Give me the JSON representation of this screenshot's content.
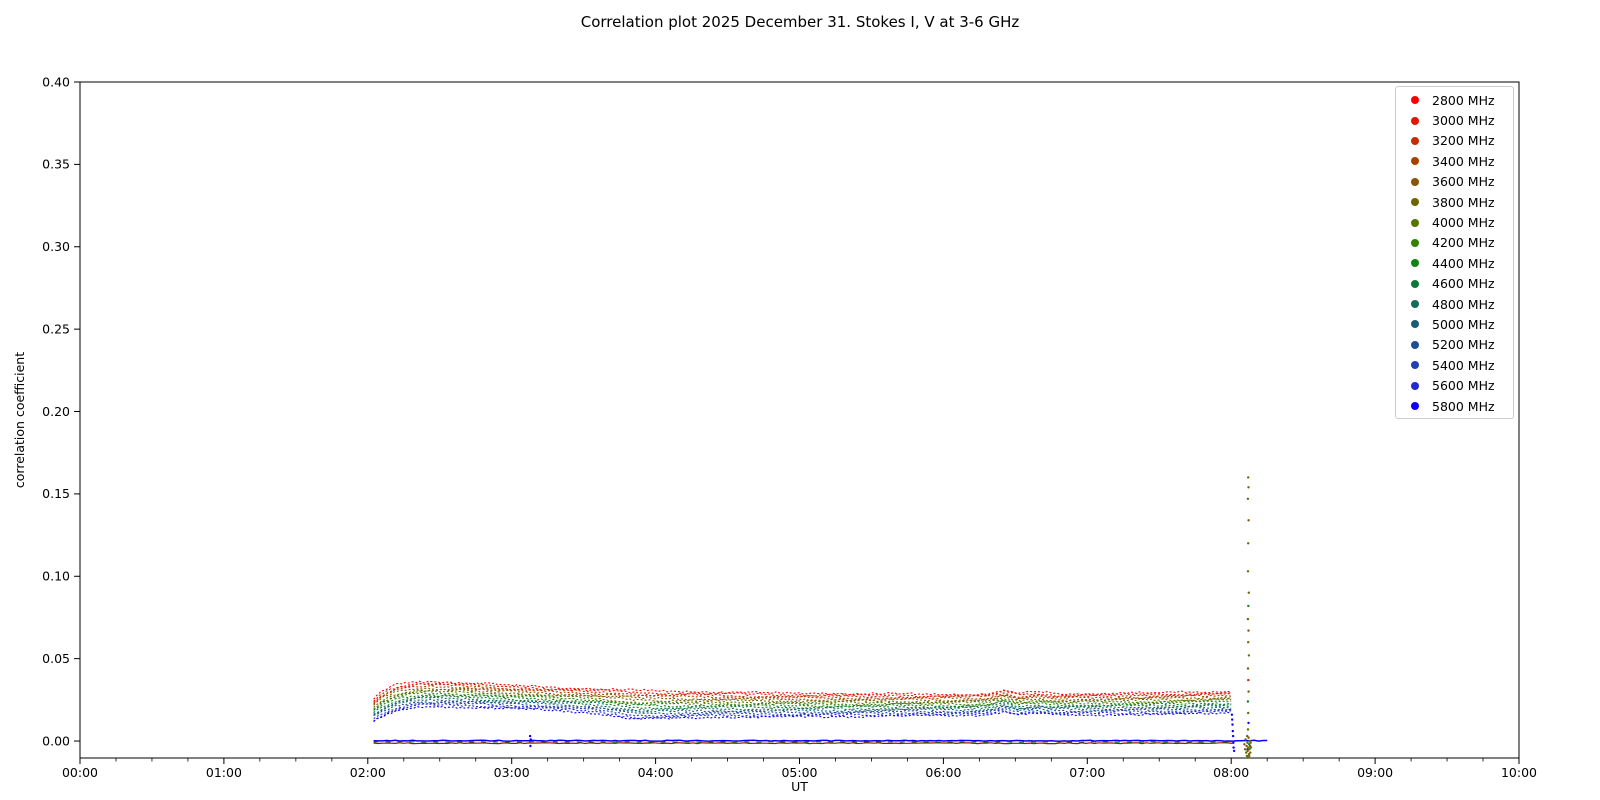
{
  "figure": {
    "title": "Correlation plot 2025 December 31. Stokes I, V at 3-6 GHz"
  },
  "chart_data": {
    "type": "line",
    "title": "Correlation plot 2025 December 31. Stokes I, V at 3-6 GHz",
    "xlabel": "UT",
    "ylabel": "correlation coefficient",
    "xlim_hours": [
      0,
      10
    ],
    "ylim": [
      -0.0103,
      0.4
    ],
    "x_major_tick_labels": [
      "00:00",
      "01:00",
      "02:00",
      "03:00",
      "04:00",
      "05:00",
      "06:00",
      "07:00",
      "08:00",
      "09:00",
      "10:00"
    ],
    "x_minor_tick_interval_minutes": 15,
    "y_ticks": [
      "0.00",
      "0.05",
      "0.10",
      "0.15",
      "0.20",
      "0.25",
      "0.30",
      "0.35",
      "0.40"
    ],
    "grid": false,
    "legend": {
      "position": "upper right",
      "entries": [
        {
          "label": "2800 MHz",
          "color": "#ff0000"
        },
        {
          "label": "3000 MHz",
          "color": "#e21600"
        },
        {
          "label": "3200 MHz",
          "color": "#c52c00"
        },
        {
          "label": "3400 MHz",
          "color": "#a84100"
        },
        {
          "label": "3600 MHz",
          "color": "#8b5400"
        },
        {
          "label": "3800 MHz",
          "color": "#6f6500"
        },
        {
          "label": "4000 MHz",
          "color": "#537600"
        },
        {
          "label": "4200 MHz",
          "color": "#358104"
        },
        {
          "label": "4400 MHz",
          "color": "#108410"
        },
        {
          "label": "4600 MHz",
          "color": "#0c7838"
        },
        {
          "label": "4800 MHz",
          "color": "#136b58"
        },
        {
          "label": "5000 MHz",
          "color": "#185d75"
        },
        {
          "label": "5200 MHz",
          "color": "#1d4d92"
        },
        {
          "label": "5400 MHz",
          "color": "#2240b2"
        },
        {
          "label": "5600 MHz",
          "color": "#2428d4"
        },
        {
          "label": "5800 MHz",
          "color": "#0b00fa"
        }
      ]
    },
    "stokes_i_band": {
      "description": "16 frequency series (Stokes I), stacked from 2800 MHz (top, red) to 5800 MHz (bottom, blue), dotted lines from about 02:02 to 08:00 UT",
      "frequencies_mhz": [
        2800,
        3000,
        3200,
        3400,
        3600,
        3800,
        4000,
        4200,
        4400,
        4600,
        4800,
        5000,
        5200,
        5400,
        5600,
        5800
      ],
      "time_range_hours": [
        2.04,
        8.0
      ],
      "envelope_t": [
        2.04,
        2.1,
        2.2,
        2.35,
        2.55,
        2.8,
        3.0,
        3.3,
        3.6,
        3.85,
        4.1,
        4.4,
        4.8,
        5.2,
        5.6,
        6.0,
        6.3,
        6.42,
        6.52,
        6.65,
        6.8,
        7.1,
        7.4,
        7.7,
        8.0
      ],
      "envelope_top_2800": [
        0.0255,
        0.03,
        0.0342,
        0.0362,
        0.0358,
        0.0348,
        0.0338,
        0.0326,
        0.0316,
        0.0308,
        0.0303,
        0.0297,
        0.0292,
        0.0289,
        0.0286,
        0.0284,
        0.0286,
        0.0306,
        0.0288,
        0.0298,
        0.0287,
        0.0289,
        0.0292,
        0.0296,
        0.0301
      ],
      "envelope_bottom_5800": [
        0.0118,
        0.0146,
        0.018,
        0.0206,
        0.0209,
        0.0203,
        0.0196,
        0.0186,
        0.0168,
        0.0132,
        0.0133,
        0.0147,
        0.0144,
        0.0148,
        0.0152,
        0.0154,
        0.0157,
        0.018,
        0.0158,
        0.0168,
        0.0158,
        0.016,
        0.0162,
        0.0165,
        0.017
      ]
    },
    "stokes_v_zero_lines": [
      {
        "v": 0.0002,
        "t0": 2.04,
        "t1": 8.25,
        "color": "#0b00fa",
        "width": 1.5
      },
      {
        "v": -0.0013,
        "t0": 2.04,
        "t1": 8.02,
        "color": "#9b1500",
        "width": 1.2
      },
      {
        "v": -0.0006,
        "t0": 2.04,
        "t1": 8.02,
        "color": "#0a6e0a",
        "width": 1.0,
        "dash": "5 7"
      }
    ],
    "scatter_points": [
      [
        8.118,
        0.16,
        5
      ],
      [
        8.12,
        0.154,
        5
      ],
      [
        8.116,
        0.147,
        5
      ],
      [
        8.121,
        0.134,
        4
      ],
      [
        8.118,
        0.12,
        5
      ],
      [
        8.117,
        0.103,
        6
      ],
      [
        8.122,
        0.09,
        5
      ],
      [
        8.119,
        0.082,
        8
      ],
      [
        8.116,
        0.074,
        5
      ],
      [
        8.12,
        0.067,
        4
      ],
      [
        8.118,
        0.06,
        5
      ],
      [
        8.123,
        0.052,
        6
      ],
      [
        8.117,
        0.044,
        5
      ],
      [
        8.119,
        0.037,
        2
      ],
      [
        8.121,
        0.03,
        5
      ],
      [
        8.116,
        0.024,
        8
      ],
      [
        8.118,
        0.017,
        5
      ],
      [
        8.12,
        0.011,
        15
      ],
      [
        8.117,
        0.007,
        6
      ],
      [
        8.092,
        -0.002,
        4
      ],
      [
        8.096,
        -0.005,
        5
      ],
      [
        8.1,
        0.001,
        6
      ],
      [
        8.104,
        -0.007,
        5
      ],
      [
        8.107,
        -0.003,
        4
      ],
      [
        8.109,
        -0.009,
        6
      ],
      [
        8.111,
        0.003,
        5
      ],
      [
        8.113,
        -0.001,
        8
      ],
      [
        8.115,
        -0.006,
        4
      ],
      [
        8.117,
        -0.01,
        5
      ],
      [
        8.119,
        -0.004,
        6
      ],
      [
        8.121,
        0.002,
        5
      ],
      [
        8.123,
        -0.008,
        4
      ],
      [
        8.125,
        -0.002,
        9
      ],
      [
        8.127,
        -0.005,
        5
      ],
      [
        8.129,
        0.0,
        6
      ],
      [
        8.131,
        -0.003,
        2
      ],
      [
        8.133,
        -0.007,
        5
      ],
      [
        8.135,
        -0.001,
        4
      ],
      [
        8.137,
        -0.004,
        6
      ],
      [
        8.126,
        -0.009,
        5
      ],
      [
        8.112,
        -0.005,
        12
      ],
      [
        8.005,
        0.016,
        15
      ],
      [
        8.007,
        0.013,
        15
      ],
      [
        8.009,
        0.01,
        15
      ],
      [
        8.011,
        0.006,
        15
      ],
      [
        8.013,
        0.003,
        15
      ],
      [
        8.015,
        -0.001,
        15
      ],
      [
        8.017,
        -0.004,
        15
      ],
      [
        8.02,
        -0.006,
        15
      ],
      [
        3.128,
        0.003,
        15
      ],
      [
        3.13,
        -0.003,
        15
      ],
      [
        3.132,
        0.001,
        15
      ]
    ]
  }
}
